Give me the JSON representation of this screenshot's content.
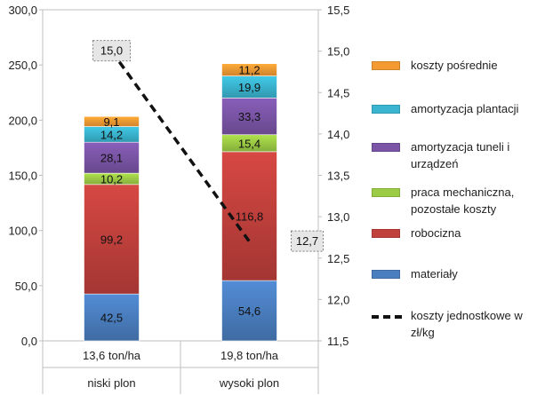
{
  "chart_data": {
    "type": "bar",
    "stacked": true,
    "categories": [
      [
        "13,6 ton/ha",
        "niski plon"
      ],
      [
        "19,8 ton/ha",
        "wysoki plon"
      ]
    ],
    "series": [
      {
        "name": "materiały",
        "values": [
          42.5,
          54.6
        ],
        "labels": [
          "42,5",
          "54,6"
        ],
        "color": "#4a7ebf"
      },
      {
        "name": "robocizna",
        "values": [
          99.2,
          116.8
        ],
        "labels": [
          "99,2",
          "116,8"
        ],
        "color": "#c0403c"
      },
      {
        "name": "praca mechaniczna, pozostałe koszty",
        "values": [
          10.2,
          15.4
        ],
        "labels": [
          "10,2",
          "15,4"
        ],
        "color": "#9ccb45"
      },
      {
        "name": "amortyzacja tuneli i urządzeń",
        "values": [
          28.1,
          33.3
        ],
        "labels": [
          "28,1",
          "33,3"
        ],
        "color": "#7a55a6"
      },
      {
        "name": "amortyzacja plantacji",
        "values": [
          14.2,
          19.9
        ],
        "labels": [
          "14,2",
          "19,9"
        ],
        "color": "#3ab4cf"
      },
      {
        "name": "koszty pośrednie",
        "values": [
          9.1,
          11.2
        ],
        "labels": [
          "9,1",
          "11,2"
        ],
        "color": "#f39a33"
      }
    ],
    "line_series": {
      "name": "koszty jednostkowe w zł/kg",
      "values": [
        15.0,
        12.7
      ],
      "labels": [
        "15,0",
        "12,7"
      ],
      "axis": "right",
      "style": "dashed",
      "color": "#111111"
    },
    "y_left": {
      "min": 0,
      "max": 300,
      "ticks": [
        "0,0",
        "50,0",
        "100,0",
        "150,0",
        "200,0",
        "250,0",
        "300,0"
      ]
    },
    "y_right": {
      "min": 11.5,
      "max": 15.5,
      "ticks": [
        "11,5",
        "12,0",
        "12,5",
        "13,0",
        "13,5",
        "14,0",
        "14,5",
        "15,0",
        "15,5"
      ]
    },
    "grid": false,
    "legend_position": "right"
  }
}
